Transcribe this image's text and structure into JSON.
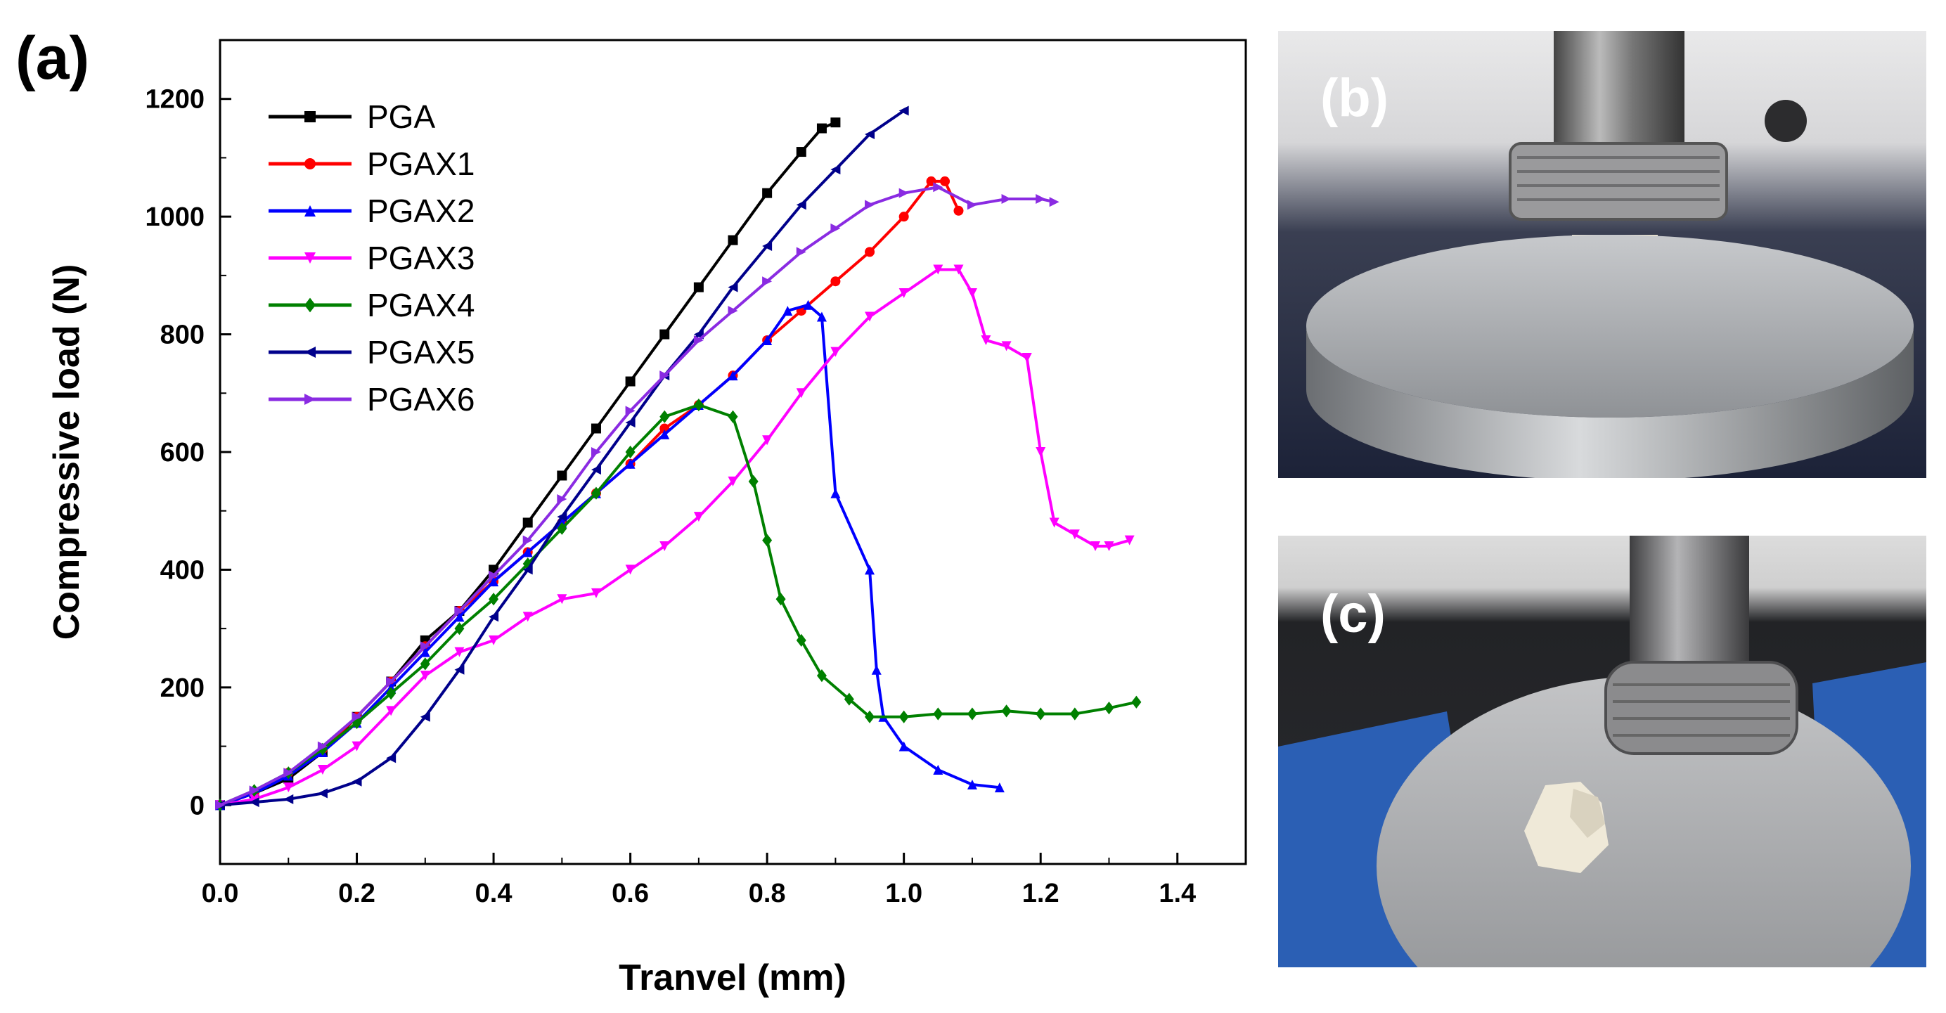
{
  "figure": {
    "panel_a_label": "(a)",
    "panel_b_label": "(b)",
    "panel_c_label": "(c)"
  },
  "chart_data": {
    "type": "line",
    "title": "",
    "xlabel": "Tranvel (mm)",
    "ylabel": "Compressive load (N)",
    "xlim": [
      0.0,
      1.5
    ],
    "ylim": [
      -100,
      1300
    ],
    "xticks": [
      "0.0",
      "0.2",
      "0.4",
      "0.6",
      "0.8",
      "1.0",
      "1.2",
      "1.4"
    ],
    "yticks": [
      "0",
      "200",
      "400",
      "600",
      "800",
      "1000",
      "1200"
    ],
    "legend_position": "top-left",
    "series": [
      {
        "name": "PGA",
        "color": "#000000",
        "marker": "square",
        "x": [
          0.0,
          0.05,
          0.1,
          0.15,
          0.2,
          0.25,
          0.3,
          0.35,
          0.4,
          0.45,
          0.5,
          0.55,
          0.6,
          0.65,
          0.7,
          0.75,
          0.8,
          0.85,
          0.88,
          0.9
        ],
        "y": [
          0,
          20,
          45,
          90,
          150,
          210,
          280,
          330,
          400,
          480,
          560,
          640,
          720,
          800,
          880,
          960,
          1040,
          1110,
          1150,
          1160
        ]
      },
      {
        "name": "PGAX1",
        "color": "#ff0000",
        "marker": "circle",
        "x": [
          0.0,
          0.05,
          0.1,
          0.15,
          0.2,
          0.25,
          0.3,
          0.35,
          0.4,
          0.45,
          0.5,
          0.55,
          0.6,
          0.65,
          0.7,
          0.75,
          0.8,
          0.85,
          0.9,
          0.95,
          1.0,
          1.04,
          1.06,
          1.08
        ],
        "y": [
          0,
          20,
          55,
          95,
          150,
          210,
          270,
          330,
          380,
          430,
          480,
          530,
          580,
          640,
          680,
          730,
          790,
          840,
          890,
          940,
          1000,
          1060,
          1060,
          1010
        ]
      },
      {
        "name": "PGAX2",
        "color": "#0000ff",
        "marker": "triangle-up",
        "x": [
          0.0,
          0.05,
          0.1,
          0.15,
          0.2,
          0.25,
          0.3,
          0.35,
          0.4,
          0.45,
          0.5,
          0.55,
          0.6,
          0.65,
          0.7,
          0.75,
          0.8,
          0.83,
          0.86,
          0.88,
          0.9,
          0.95,
          0.96,
          0.97,
          1.0,
          1.05,
          1.1,
          1.14
        ],
        "y": [
          0,
          20,
          50,
          90,
          140,
          200,
          260,
          320,
          380,
          430,
          480,
          530,
          580,
          630,
          680,
          730,
          790,
          840,
          850,
          830,
          530,
          400,
          230,
          150,
          100,
          60,
          35,
          30
        ]
      },
      {
        "name": "PGAX3",
        "color": "#ff00ff",
        "marker": "triangle-down",
        "x": [
          0.0,
          0.05,
          0.1,
          0.15,
          0.2,
          0.25,
          0.3,
          0.35,
          0.4,
          0.45,
          0.5,
          0.55,
          0.6,
          0.65,
          0.7,
          0.75,
          0.8,
          0.85,
          0.9,
          0.95,
          1.0,
          1.05,
          1.08,
          1.1,
          1.12,
          1.15,
          1.18,
          1.2,
          1.22,
          1.25,
          1.28,
          1.3,
          1.33
        ],
        "y": [
          0,
          10,
          30,
          60,
          100,
          160,
          220,
          260,
          280,
          320,
          350,
          360,
          400,
          440,
          490,
          550,
          620,
          700,
          770,
          830,
          870,
          910,
          910,
          870,
          790,
          780,
          760,
          600,
          480,
          460,
          440,
          440,
          450
        ]
      },
      {
        "name": "PGAX4",
        "color": "#008000",
        "marker": "diamond",
        "x": [
          0.0,
          0.05,
          0.1,
          0.15,
          0.2,
          0.25,
          0.3,
          0.35,
          0.4,
          0.45,
          0.5,
          0.55,
          0.6,
          0.65,
          0.7,
          0.75,
          0.78,
          0.8,
          0.82,
          0.85,
          0.88,
          0.92,
          0.95,
          1.0,
          1.05,
          1.1,
          1.15,
          1.2,
          1.25,
          1.3,
          1.34
        ],
        "y": [
          0,
          25,
          55,
          95,
          140,
          190,
          240,
          300,
          350,
          410,
          470,
          530,
          600,
          660,
          680,
          660,
          550,
          450,
          350,
          280,
          220,
          180,
          150,
          150,
          155,
          155,
          160,
          155,
          155,
          165,
          175
        ]
      },
      {
        "name": "PGAX5",
        "color": "#00008b",
        "marker": "triangle-left",
        "x": [
          0.0,
          0.05,
          0.1,
          0.15,
          0.2,
          0.25,
          0.3,
          0.35,
          0.4,
          0.45,
          0.5,
          0.55,
          0.6,
          0.65,
          0.7,
          0.75,
          0.8,
          0.85,
          0.9,
          0.95,
          1.0
        ],
        "y": [
          0,
          5,
          10,
          20,
          40,
          80,
          150,
          230,
          320,
          400,
          490,
          570,
          650,
          730,
          800,
          880,
          950,
          1020,
          1080,
          1140,
          1180
        ]
      },
      {
        "name": "PGAX6",
        "color": "#8a2be2",
        "marker": "triangle-right",
        "x": [
          0.0,
          0.05,
          0.1,
          0.15,
          0.2,
          0.25,
          0.3,
          0.35,
          0.4,
          0.45,
          0.5,
          0.55,
          0.6,
          0.65,
          0.7,
          0.75,
          0.8,
          0.85,
          0.9,
          0.95,
          1.0,
          1.05,
          1.1,
          1.15,
          1.2,
          1.22
        ],
        "y": [
          0,
          25,
          55,
          100,
          150,
          210,
          270,
          330,
          390,
          450,
          520,
          600,
          670,
          730,
          790,
          840,
          890,
          940,
          980,
          1020,
          1040,
          1050,
          1020,
          1030,
          1030,
          1025
        ]
      }
    ]
  }
}
